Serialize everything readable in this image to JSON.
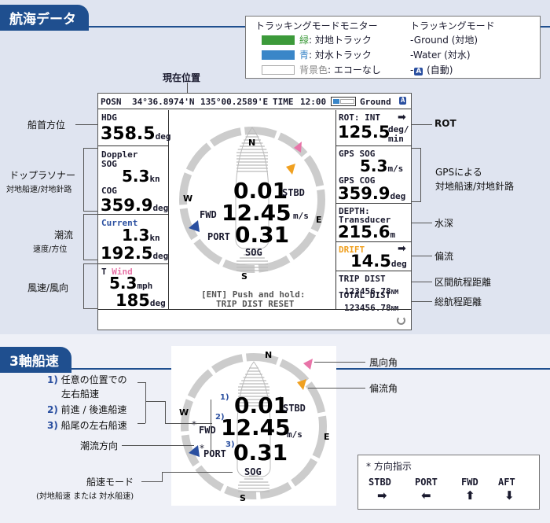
{
  "section1_title": "航海データ",
  "section2_title": "3軸船速",
  "legend": {
    "title1": "トラッキングモードモニター",
    "title2": "トラッキングモード",
    "rows": [
      {
        "color": "#3c9a3a",
        "prefix": "緑",
        "text": ": 対地トラック",
        "mode": "-Ground (対地)"
      },
      {
        "color": "#3a86c8",
        "prefix": "青",
        "text": ": 対水トラック",
        "mode": "-Water (対水)"
      },
      {
        "color": "#ffffff",
        "prefix": "背景色",
        "text": ": エコーなし",
        "mode_badge": "A",
        "mode": " (自動)"
      }
    ]
  },
  "current_pos_label": "現在位置",
  "topbar": {
    "posn": "POSN",
    "lat": "34°36.8974'N",
    "lon": "135°00.2589'E",
    "time_label": "TIME",
    "time": "12:00",
    "mode": "Ground",
    "mode_badge": "A"
  },
  "left": {
    "hdg_label": "HDG",
    "hdg_value": "358.5",
    "hdg_unit": "deg",
    "doppler_label": "Doppler",
    "sog_label": "SOG",
    "sog_value": "5.3",
    "sog_unit": "kn",
    "cog_label": "COG",
    "cog_value": "359.9",
    "cog_unit": "deg",
    "current_label": "Current",
    "current_speed": "1.3",
    "current_speed_unit": "kn",
    "current_dir": "192.5",
    "current_dir_unit": "deg",
    "wind_prefix": "T",
    "wind_label": "Wind",
    "wind_speed": "5.3",
    "wind_speed_unit": "mph",
    "wind_dir": "185",
    "wind_dir_unit": "deg"
  },
  "right": {
    "rot_label": "ROT: INT",
    "rot_value": "125.5",
    "rot_unit_top": "deg/",
    "rot_unit_bot": "min",
    "gps_sog_label": "GPS SOG",
    "gps_sog_value": "5.3",
    "gps_sog_unit": "m/s",
    "gps_cog_label": "GPS COG",
    "gps_cog_value": "359.9",
    "gps_cog_unit": "deg",
    "depth_label": "DEPTH:",
    "depth_src": "Transducer",
    "depth_value": "215.6",
    "depth_unit": "m",
    "drift_label": "DRIFT",
    "drift_value": "14.5",
    "drift_unit": "deg",
    "trip_label": "TRIP DIST",
    "trip_value": "123456.78",
    "trip_unit": "NM",
    "total_label": "TOTAL DIST",
    "total_value": "123456.78",
    "total_unit": "NM"
  },
  "center": {
    "n": "N",
    "e": "E",
    "s": "S",
    "w": "W",
    "stbd_value": "0.01",
    "stbd_label": "STBD",
    "fwd_label": "FWD",
    "fwd_value": "12.45",
    "fwd_unit": "m/s",
    "port_label": "PORT",
    "port_value": "0.31",
    "sog_label": "SOG",
    "hint1": "[ENT] Push and hold:",
    "hint2": "TRIP DIST RESET"
  },
  "callouts_left": {
    "heading": "船首方位",
    "doppler": "ドップラソナー",
    "doppler_sub": "対地船速/対地針路",
    "current": "潮流",
    "current_sub": "速度/方位",
    "wind": "風速/風向"
  },
  "callouts_right": {
    "rot": "ROT",
    "gps1": "GPSによる",
    "gps2": "対地船速/対地針路",
    "depth": "水深",
    "drift": "偏流",
    "trip": "区間航程距離",
    "total": "総航程距離"
  },
  "lower": {
    "c1_num": "1)",
    "c1_text1": "任意の位置での",
    "c1_text2": "左右船速",
    "c2_num": "2)",
    "c2_text": "前進 / 後進船速",
    "c3_num": "3)",
    "c3_text": "船尾の左右船速",
    "current_dir": "潮流方向",
    "ship_mode": "船速モード",
    "ship_mode_sub": "(対地船速 または 対水船速)",
    "wind_angle": "風向角",
    "drift_angle": "偏流角",
    "dial": {
      "n": "N",
      "e": "E",
      "s": "S",
      "w": "W",
      "stbd_value": "0.01",
      "stbd_label": "STBD",
      "fwd_label": "FWD",
      "fwd_value": "12.45",
      "fwd_unit": "m/s",
      "port_label": "PORT",
      "port_value": "0.31",
      "sog_label": "SOG",
      "m1": "1)",
      "m2": "2)",
      "m3": "3)",
      "star": "*"
    }
  },
  "direction_box": {
    "title": "* 方向指示",
    "items": [
      {
        "label": "STBD",
        "arrow": "right"
      },
      {
        "label": "PORT",
        "arrow": "left"
      },
      {
        "label": "FWD",
        "arrow": "up"
      },
      {
        "label": "AFT",
        "arrow": "down"
      }
    ]
  }
}
